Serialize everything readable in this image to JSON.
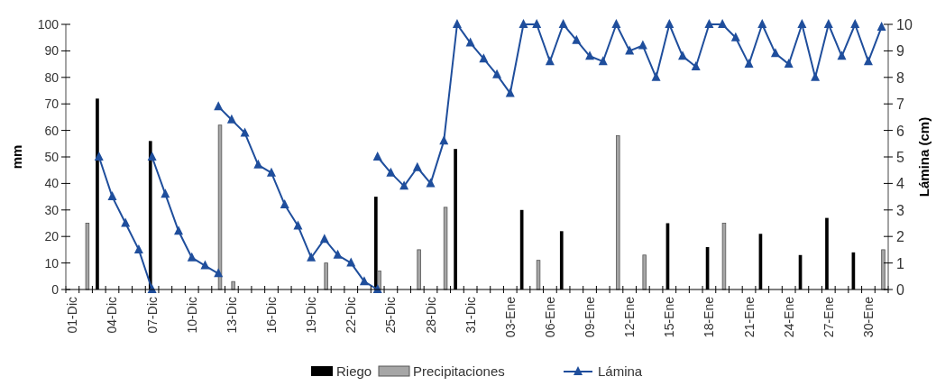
{
  "chart_data": {
    "type": "bar",
    "ylabel": "mm",
    "y2label": "Lámina (cm)",
    "ylim": [
      0,
      100
    ],
    "yticks": [
      0,
      10,
      20,
      30,
      40,
      50,
      60,
      70,
      80,
      90,
      100
    ],
    "y2lim": [
      0,
      10
    ],
    "y2ticks": [
      0,
      1,
      2,
      3,
      4,
      5,
      6,
      7,
      8,
      9,
      10
    ],
    "legend": "bottom",
    "marker": "triangle",
    "categories": [
      "01-Dic",
      null,
      null,
      "04-Dic",
      null,
      null,
      "07-Dic",
      null,
      null,
      "10-Dic",
      null,
      null,
      "13-Dic",
      null,
      null,
      "16-Dic",
      null,
      null,
      "19-Dic",
      null,
      null,
      "22-Dic",
      null,
      null,
      "25-Dic",
      null,
      null,
      "28-Dic",
      null,
      null,
      "31-Dic",
      null,
      null,
      "03-Ene",
      null,
      null,
      "06-Ene",
      null,
      null,
      "09-Ene",
      null,
      null,
      "12-Ene",
      null,
      null,
      "15-Ene",
      null,
      null,
      "18-Ene",
      null,
      null,
      "21-Ene",
      null,
      null,
      "24-Ene",
      null,
      null,
      "27-Ene",
      null,
      null,
      "30-Ene",
      null
    ],
    "series": [
      {
        "name": "Riego",
        "color": "#000000",
        "values": [
          null,
          null,
          72,
          null,
          null,
          null,
          56,
          null,
          null,
          null,
          null,
          null,
          null,
          null,
          null,
          null,
          null,
          null,
          null,
          null,
          null,
          null,
          null,
          35,
          null,
          null,
          null,
          null,
          null,
          53,
          null,
          null,
          null,
          null,
          30,
          null,
          null,
          22,
          null,
          null,
          null,
          null,
          null,
          null,
          null,
          25,
          null,
          null,
          16,
          null,
          null,
          null,
          21,
          null,
          null,
          13,
          null,
          27,
          null,
          14,
          null,
          null
        ]
      },
      {
        "name": "Precipitaciones",
        "color": "#a6a6a6",
        "values": [
          null,
          25,
          null,
          null,
          null,
          null,
          null,
          null,
          null,
          null,
          null,
          62,
          3,
          null,
          null,
          null,
          null,
          null,
          null,
          10,
          null,
          null,
          null,
          7,
          null,
          null,
          15,
          null,
          31,
          null,
          null,
          null,
          null,
          null,
          null,
          11,
          null,
          null,
          null,
          null,
          null,
          58,
          null,
          13,
          null,
          null,
          null,
          null,
          null,
          25,
          null,
          null,
          null,
          null,
          null,
          null,
          null,
          null,
          null,
          null,
          null,
          15
        ]
      },
      {
        "name": "Lámina",
        "type": "line",
        "axis": "y2",
        "color": "#1f4e9c",
        "values": [
          null,
          null,
          5,
          3.5,
          2.5,
          1.5,
          0,
          null,
          null,
          null,
          null,
          null,
          null,
          null,
          null,
          null,
          null,
          null,
          null,
          null,
          null,
          null,
          null,
          null,
          null,
          null,
          null,
          null,
          null,
          null,
          null,
          null,
          null,
          null,
          null,
          null,
          null,
          null,
          null,
          null,
          null,
          null,
          null,
          null,
          null,
          null,
          null,
          null,
          null,
          null,
          null,
          null,
          null,
          null,
          null,
          null,
          null,
          null,
          null,
          null,
          null,
          null
        ]
      },
      {
        "type": "line",
        "axis": "y2",
        "color": "#1f4e9c",
        "values": [
          null,
          null,
          null,
          null,
          null,
          null,
          5,
          3.6,
          2.2,
          1.2,
          0.9,
          0.6,
          null,
          null,
          null,
          null,
          null,
          null,
          null,
          null,
          null,
          null,
          null,
          null,
          null,
          null,
          null,
          null,
          null,
          null,
          null,
          null,
          null,
          null,
          null,
          null,
          null,
          null,
          null,
          null,
          null,
          null,
          null,
          null,
          null,
          null,
          null,
          null,
          null,
          null,
          null,
          null,
          null,
          null,
          null,
          null,
          null,
          null,
          null,
          null,
          null,
          null
        ]
      },
      {
        "type": "line",
        "axis": "y2",
        "color": "#1f4e9c",
        "values": [
          null,
          null,
          null,
          null,
          null,
          null,
          null,
          null,
          null,
          null,
          null,
          6.9,
          6.4,
          5.9,
          4.7,
          4.4,
          3.2,
          2.4,
          1.2,
          1.9,
          1.3,
          1.0,
          0.3,
          0,
          null,
          null,
          null,
          null,
          null,
          null,
          null,
          null,
          null,
          null,
          null,
          null,
          null,
          null,
          null,
          null,
          null,
          null,
          null,
          null,
          null,
          null,
          null,
          null,
          null,
          null,
          null,
          null,
          null,
          null,
          null,
          null,
          null,
          null,
          null,
          null,
          null,
          null
        ]
      },
      {
        "type": "line",
        "axis": "y2",
        "color": "#1f4e9c",
        "values": [
          null,
          null,
          null,
          null,
          null,
          null,
          null,
          null,
          null,
          null,
          null,
          null,
          null,
          null,
          null,
          null,
          null,
          null,
          null,
          null,
          null,
          null,
          null,
          5,
          4.4,
          3.9,
          4.6,
          4,
          5.6,
          10,
          9.3,
          8.7,
          8.1,
          7.4,
          10,
          10,
          8.6,
          10,
          9.4,
          8.8,
          8.6,
          10,
          9,
          9.2,
          8,
          10,
          8.8,
          8.4,
          10,
          10,
          9.5,
          8.5,
          10,
          8.9,
          8.5,
          10,
          8,
          10,
          8.8,
          10,
          8.6,
          9.9
        ]
      }
    ]
  }
}
